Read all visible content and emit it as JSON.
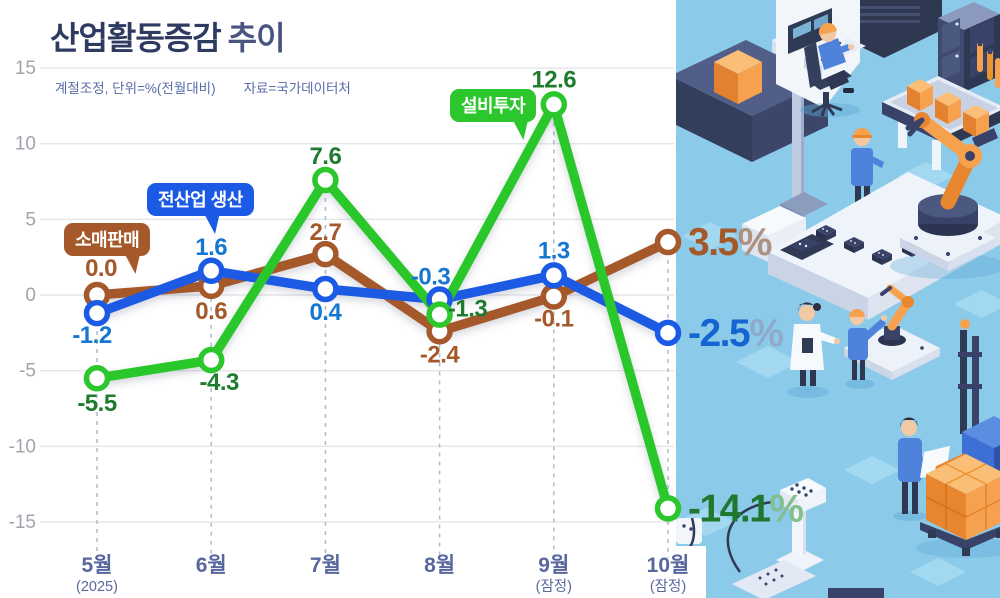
{
  "header": {
    "title_main": "산업활동증감",
    "title_sub": "추이",
    "note": "계절조정, 단위=%(전월대비)",
    "source": "자료=국가데이터처"
  },
  "legend": {
    "retail": "소매판매",
    "production": "전산업 생산",
    "investment": "설비투자"
  },
  "chart_data": {
    "type": "line",
    "title": "산업활동증감 추이",
    "unit_note": "계절조정, 단위=%(전월대비)",
    "source": "자료=국가데이터처",
    "categories": [
      "5월",
      "6월",
      "7월",
      "8월",
      "9월",
      "10월"
    ],
    "category_subs": [
      "(2025)",
      "",
      "",
      "",
      "(잠정)",
      "(잠정)"
    ],
    "y_ticks": [
      15,
      10,
      5,
      0,
      -5,
      -10,
      -15
    ],
    "ylim": [
      -15,
      15
    ],
    "grid": true,
    "percent_suffix": "%",
    "legend_position": "callout-badges-on-lines",
    "series": [
      {
        "name": "소매판매",
        "color": "#A5592A",
        "label_color": "#A5592A",
        "final_color": "#A5592A",
        "pct_color": "#AD9181",
        "values": [
          0.0,
          0.6,
          2.7,
          -2.4,
          -0.1,
          3.5
        ],
        "point_labels": [
          "0.0",
          "0.6",
          "2.7",
          "-2.4",
          "-0.1"
        ],
        "label_offsets": [
          [
            4,
            -19
          ],
          [
            0,
            33
          ],
          [
            0,
            -14
          ],
          [
            0,
            31
          ],
          [
            0,
            30
          ]
        ],
        "final_label": "3.5"
      },
      {
        "name": "전산업 생산",
        "color": "#1A5AE4",
        "label_color": "#1477D1",
        "final_color": "#1464D2",
        "pct_color": "#8FA9CC",
        "values": [
          -1.2,
          1.6,
          0.4,
          -0.3,
          1.3,
          -2.5
        ],
        "point_labels": [
          "-1.2",
          "1.6",
          "0.4",
          "-0.3",
          "1.3"
        ],
        "label_offsets": [
          [
            -5,
            30
          ],
          [
            0,
            -16
          ],
          [
            0,
            31
          ],
          [
            -9,
            -15
          ],
          [
            0,
            -17
          ]
        ],
        "final_label": "-2.5"
      },
      {
        "name": "설비투자",
        "color": "#2CC72C",
        "label_color": "#1E7B2F",
        "final_color": "#20782F",
        "pct_color": "#83BE8E",
        "values": [
          -5.5,
          -4.3,
          7.6,
          -1.3,
          12.6,
          -14.1
        ],
        "point_labels": [
          "-5.5",
          "-4.3",
          "7.6",
          "-1.3",
          "12.6"
        ],
        "label_offsets": [
          [
            0,
            33
          ],
          [
            8,
            30
          ],
          [
            0,
            -16
          ],
          [
            28,
            2
          ],
          [
            0,
            -17
          ]
        ],
        "final_label": "-14.1"
      }
    ]
  },
  "illustration": {
    "name": "isometric-smart-factory",
    "bg": "#8CCAE9",
    "tile": "#A3D8F1",
    "navy": "#39436A",
    "orange": "#F6A14E",
    "shirt_blue": "#4E82DB"
  }
}
